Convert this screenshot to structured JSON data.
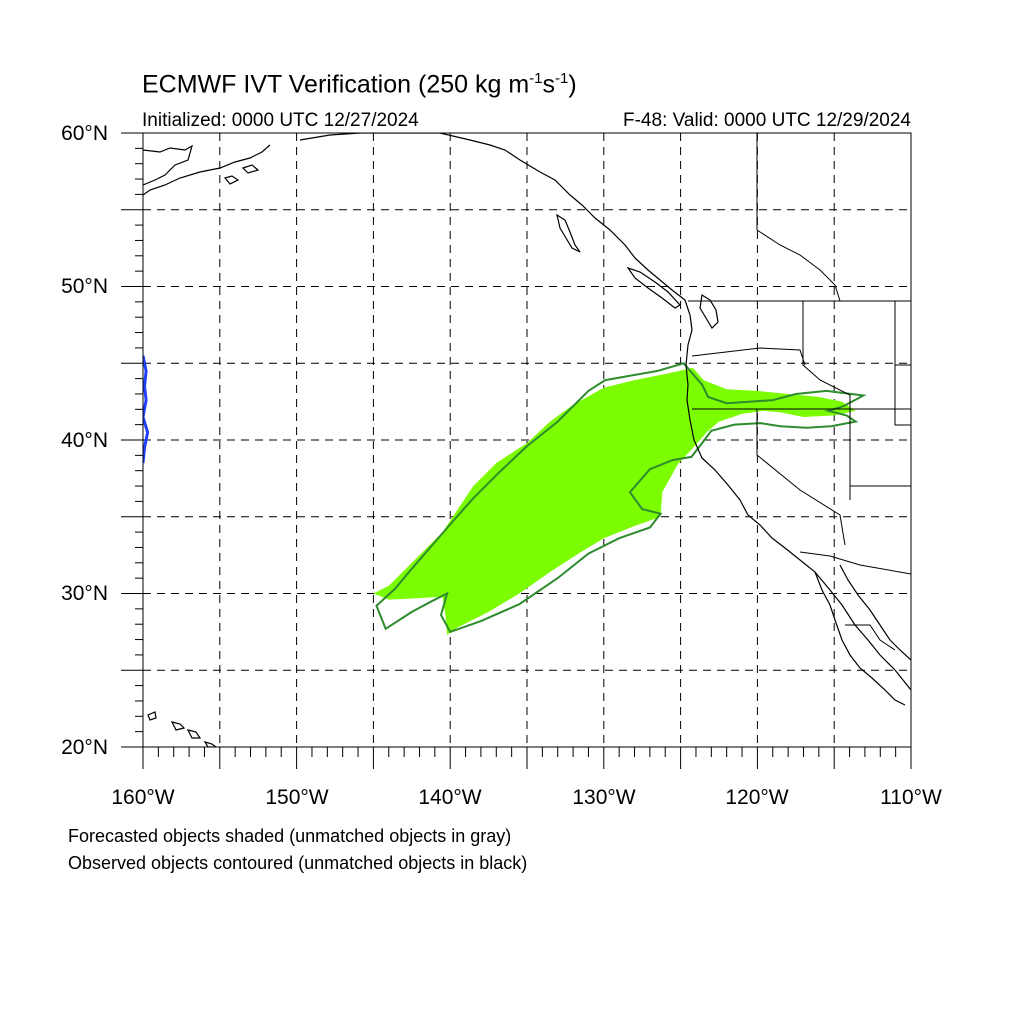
{
  "title": {
    "main": "ECMWF IVT Verification (250 kg m",
    "sup1": "-1",
    "mid": "s",
    "sup2": "-1",
    "end": ")"
  },
  "initialized": "Initialized: 0000 UTC 12/27/2024",
  "valid": "F-48: Valid: 0000 UTC 12/29/2024",
  "lat_labels": [
    "60°N",
    "50°N",
    "40°N",
    "30°N",
    "20°N"
  ],
  "lon_labels": [
    "160°W",
    "150°W",
    "140°W",
    "130°W",
    "120°W",
    "110°W"
  ],
  "footer": {
    "line1": "Forecasted objects shaded (unmatched objects in gray)",
    "line2": "Observed objects contoured (unmatched objects in black)"
  },
  "map": {
    "lon_range": [
      -160,
      -110
    ],
    "lat_range": [
      20,
      60
    ],
    "grid_interval_deg": 5,
    "colors": {
      "forecast_fill": "#7cfc00",
      "observed_matched_contour": "#2e8b2e",
      "observed_secondary_contour": "#2040ff",
      "coastline": "#000000",
      "grid": "#000000"
    },
    "forecast_object_lonlat": [
      [
        -145,
        30
      ],
      [
        -144,
        30.5
      ],
      [
        -143,
        31.5
      ],
      [
        -142,
        32.5
      ],
      [
        -140.5,
        34
      ],
      [
        -139.5,
        35.5
      ],
      [
        -138.5,
        37
      ],
      [
        -137,
        38.5
      ],
      [
        -135,
        39.8
      ],
      [
        -133.5,
        41.2
      ],
      [
        -132,
        42.3
      ],
      [
        -130,
        43.4
      ],
      [
        -128,
        43.9
      ],
      [
        -126,
        44.3
      ],
      [
        -124.2,
        44.7
      ],
      [
        -123.5,
        43.9
      ],
      [
        -122,
        43.3
      ],
      [
        -120,
        43.2
      ],
      [
        -118,
        43.0
      ],
      [
        -117,
        42.9
      ],
      [
        -116,
        42.8
      ],
      [
        -114.5,
        42.5
      ],
      [
        -113.6,
        41.9
      ],
      [
        -115,
        41.6
      ],
      [
        -117,
        41.5
      ],
      [
        -118.5,
        41.8
      ],
      [
        -119.6,
        41.9
      ],
      [
        -121,
        41.7
      ],
      [
        -122.5,
        41.2
      ],
      [
        -123.3,
        40.5
      ],
      [
        -124,
        39.7
      ],
      [
        -125.2,
        38.4
      ],
      [
        -126.2,
        36.6
      ],
      [
        -126.3,
        35.0
      ],
      [
        -128,
        34.4
      ],
      [
        -130,
        33.6
      ],
      [
        -131.5,
        32.7
      ],
      [
        -133.5,
        31.4
      ],
      [
        -135.5,
        30
      ],
      [
        -137.5,
        28.8
      ],
      [
        -139.5,
        27.8
      ],
      [
        -140.2,
        27.3
      ],
      [
        -140.3,
        28.5
      ],
      [
        -140.5,
        29.8
      ],
      [
        -142,
        29.7
      ],
      [
        -144,
        29.6
      ]
    ],
    "observed_object_lonlat": [
      [
        -144.2,
        27.7
      ],
      [
        -142.5,
        28.8
      ],
      [
        -141.2,
        29.5
      ],
      [
        -140.2,
        30.0
      ],
      [
        -140.6,
        28.6
      ],
      [
        -140.0,
        27.5
      ],
      [
        -138,
        28.2
      ],
      [
        -135.5,
        29.3
      ],
      [
        -133,
        31.0
      ],
      [
        -131,
        32.6
      ],
      [
        -129,
        33.6
      ],
      [
        -127,
        34.3
      ],
      [
        -126.3,
        35.2
      ],
      [
        -127.5,
        35.5
      ],
      [
        -128.3,
        36.6
      ],
      [
        -127,
        38.1
      ],
      [
        -125.5,
        38.7
      ],
      [
        -124.3,
        38.9
      ],
      [
        -123.6,
        39.8
      ],
      [
        -123,
        40.6
      ],
      [
        -121.5,
        41.0
      ],
      [
        -119.8,
        41.1
      ],
      [
        -118.5,
        40.9
      ],
      [
        -116.8,
        40.8
      ],
      [
        -115.2,
        40.9
      ],
      [
        -113.6,
        41.2
      ],
      [
        -114.2,
        41.6
      ],
      [
        -115.4,
        41.9
      ],
      [
        -114.4,
        42.2
      ],
      [
        -113.1,
        42.9
      ],
      [
        -115.5,
        43.2
      ],
      [
        -117.5,
        43.0
      ],
      [
        -119,
        42.6
      ],
      [
        -120.4,
        42.5
      ],
      [
        -122,
        42.4
      ],
      [
        -123.2,
        42.8
      ],
      [
        -123.6,
        43.6
      ],
      [
        -124.8,
        45.0
      ],
      [
        -126.5,
        44.5
      ],
      [
        -128.2,
        44.2
      ],
      [
        -129.9,
        43.9
      ],
      [
        -131,
        43.2
      ],
      [
        -133,
        41.2
      ],
      [
        -135,
        39.6
      ],
      [
        -136.7,
        38.0
      ],
      [
        -138.5,
        36.2
      ],
      [
        -140,
        34.5
      ],
      [
        -141.3,
        33.0
      ],
      [
        -142.6,
        31.5
      ],
      [
        -143.6,
        30.3
      ],
      [
        -144.8,
        29.2
      ]
    ],
    "secondary_object_lonlat": [
      [
        -160,
        45.5
      ],
      [
        -159.8,
        44.5
      ],
      [
        -159.9,
        43.5
      ],
      [
        -159.8,
        42.6
      ],
      [
        -160,
        41.5
      ],
      [
        -159.7,
        40.5
      ],
      [
        -159.9,
        39.5
      ],
      [
        -160,
        38.5
      ]
    ]
  }
}
